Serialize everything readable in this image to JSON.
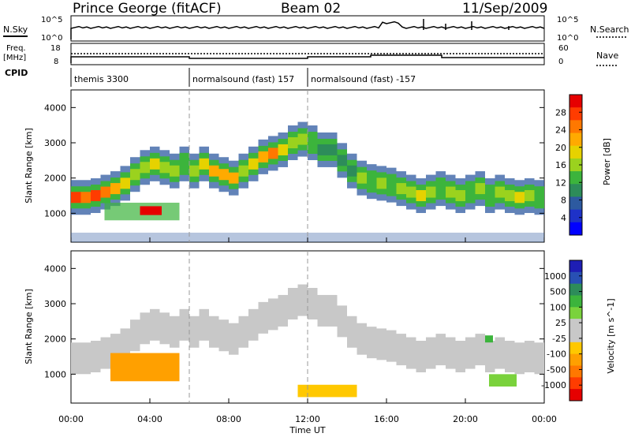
{
  "header": {
    "station": "Prince George (fitACF)",
    "beam": "Beam 02",
    "date": "11/Sep/2009"
  },
  "strips": {
    "nsky_label": "N.Sky",
    "nsky_ticks": [
      "10^5",
      "10^0"
    ],
    "nsearch_ticks": [
      "10^5",
      "10^0"
    ],
    "nsearch_label": "N.Search",
    "freq_label_1": "Freq.",
    "freq_label_2": "[MHz]",
    "freq_ticks": [
      "18",
      "8"
    ],
    "nave_ticks": [
      "60",
      "0"
    ],
    "nave_label": "Nave",
    "cpid_label": "CPID",
    "cpid_segments": [
      {
        "label": "themis 3300",
        "start_hour": 0
      },
      {
        "label": "normalsound (fast) 157",
        "start_hour": 6
      },
      {
        "label": "normalsound (fast) -157",
        "start_hour": 12
      }
    ]
  },
  "axes": {
    "ylabel": "Slant Range [km]",
    "yticks": [
      "4000",
      "3000",
      "2000",
      "1000"
    ],
    "xlabel": "Time UT",
    "xticks": [
      "00:00",
      "04:00",
      "08:00",
      "12:00",
      "16:00",
      "20:00",
      "00:00"
    ]
  },
  "power_colorbar": {
    "label": "Power [dB]",
    "ticks": [
      "28",
      "24",
      "20",
      "16",
      "12",
      "8",
      "4"
    ],
    "colors": [
      "#e60000",
      "#ff3c00",
      "#ff7800",
      "#ffaa00",
      "#e6d200",
      "#9bd21e",
      "#3cb43c",
      "#2d8c5a",
      "#2d5aa0",
      "#1e32c8",
      "#0000ff"
    ]
  },
  "velocity_colorbar": {
    "label": "Velocity [m s^-1]",
    "ticks": [
      "1000",
      "500",
      "100",
      "25",
      "-25",
      "-100",
      "-500",
      "-1000"
    ],
    "colors": [
      "#1e1eb4",
      "#2850b4",
      "#2d8c5a",
      "#3cb43c",
      "#7ad23c",
      "#c8c8c8",
      "#c8c8c8",
      "#ffc800",
      "#ffa000",
      "#ff7800",
      "#ff3c00",
      "#e60000"
    ]
  },
  "chart_data": {
    "type": "heatmap",
    "x_range_hours": [
      0,
      24
    ],
    "y_range_km": [
      180,
      4500
    ],
    "power_bands": [
      {
        "t": 0.0,
        "r": 1450,
        "db": 26
      },
      {
        "t": 0.5,
        "r": 1450,
        "db": 24
      },
      {
        "t": 1.0,
        "r": 1500,
        "db": 26
      },
      {
        "t": 1.5,
        "r": 1600,
        "db": 24
      },
      {
        "t": 2.0,
        "r": 1700,
        "db": 22
      },
      {
        "t": 2.5,
        "r": 1850,
        "db": 18
      },
      {
        "t": 3.0,
        "r": 2100,
        "db": 14
      },
      {
        "t": 3.5,
        "r": 2300,
        "db": 16
      },
      {
        "t": 4.0,
        "r": 2400,
        "db": 18
      },
      {
        "t": 4.5,
        "r": 2300,
        "db": 16
      },
      {
        "t": 5.0,
        "r": 2200,
        "db": 14
      },
      {
        "t": 5.5,
        "r": 2400,
        "db": 12
      },
      {
        "t": 6.0,
        "r": 2200,
        "db": 14
      },
      {
        "t": 6.5,
        "r": 2400,
        "db": 18
      },
      {
        "t": 7.0,
        "r": 2200,
        "db": 20
      },
      {
        "t": 7.5,
        "r": 2100,
        "db": 22
      },
      {
        "t": 8.0,
        "r": 2000,
        "db": 20
      },
      {
        "t": 8.5,
        "r": 2200,
        "db": 16
      },
      {
        "t": 9.0,
        "r": 2400,
        "db": 18
      },
      {
        "t": 9.5,
        "r": 2600,
        "db": 22
      },
      {
        "t": 10.0,
        "r": 2700,
        "db": 24
      },
      {
        "t": 10.5,
        "r": 2800,
        "db": 18
      },
      {
        "t": 11.0,
        "r": 3000,
        "db": 16
      },
      {
        "t": 11.5,
        "r": 3100,
        "db": 14
      },
      {
        "t": 12.0,
        "r": 3000,
        "db": 12
      },
      {
        "t": 12.5,
        "r": 2800,
        "db": 10
      },
      {
        "t": 13.5,
        "r": 2500,
        "db": 8
      },
      {
        "t": 14.0,
        "r": 2200,
        "db": 10
      },
      {
        "t": 14.5,
        "r": 2000,
        "db": 14
      },
      {
        "t": 15.0,
        "r": 1900,
        "db": 12
      },
      {
        "t": 15.5,
        "r": 1850,
        "db": 14
      },
      {
        "t": 16.0,
        "r": 1800,
        "db": 12
      },
      {
        "t": 16.5,
        "r": 1700,
        "db": 14
      },
      {
        "t": 17.0,
        "r": 1600,
        "db": 16
      },
      {
        "t": 17.5,
        "r": 1500,
        "db": 18
      },
      {
        "t": 18.0,
        "r": 1600,
        "db": 14
      },
      {
        "t": 18.5,
        "r": 1700,
        "db": 12
      },
      {
        "t": 19.0,
        "r": 1600,
        "db": 14
      },
      {
        "t": 19.5,
        "r": 1500,
        "db": 16
      },
      {
        "t": 20.0,
        "r": 1600,
        "db": 12
      },
      {
        "t": 20.5,
        "r": 1700,
        "db": 14
      },
      {
        "t": 21.0,
        "r": 1500,
        "db": 12
      },
      {
        "t": 21.5,
        "r": 1600,
        "db": 14
      },
      {
        "t": 22.0,
        "r": 1500,
        "db": 16
      },
      {
        "t": 22.5,
        "r": 1450,
        "db": 18
      },
      {
        "t": 23.0,
        "r": 1500,
        "db": 14
      },
      {
        "t": 23.5,
        "r": 1450,
        "db": 12
      }
    ],
    "velocity_patches": [
      {
        "t0": 2.0,
        "t1": 5.5,
        "r0": 800,
        "r1": 1600,
        "v": -150
      },
      {
        "t0": 11.5,
        "t1": 14.5,
        "r0": 350,
        "r1": 700,
        "v": -60
      },
      {
        "t0": 21.2,
        "t1": 22.6,
        "r0": 650,
        "r1": 1000,
        "v": 80
      },
      {
        "t0": 21.0,
        "t1": 21.4,
        "r0": 1900,
        "r1": 2100,
        "v": 150
      }
    ]
  }
}
